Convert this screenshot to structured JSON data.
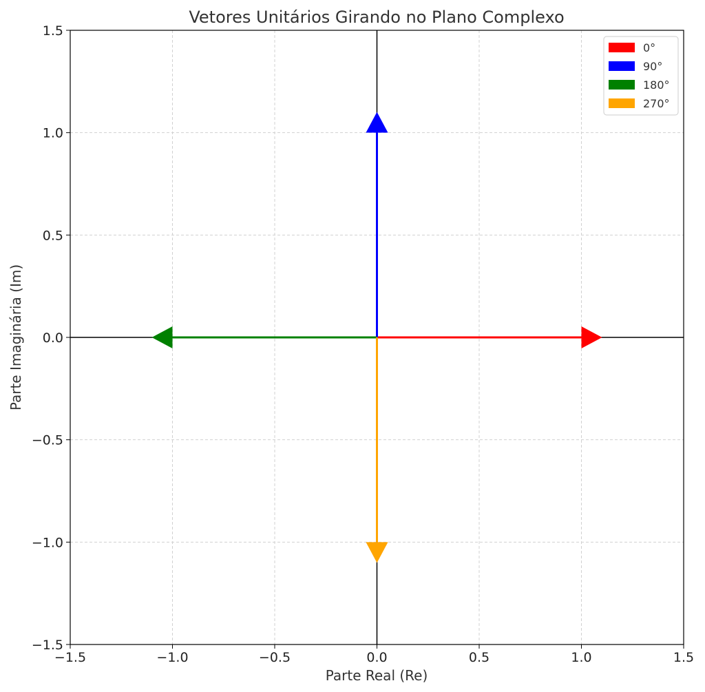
{
  "chart_data": {
    "type": "quiver",
    "title": "Vetores Unitários Girando no Plano Complexo",
    "xlabel": "Parte Real (Re)",
    "ylabel": "Parte Imaginária (Im)",
    "xlim": [
      -1.5,
      1.5
    ],
    "ylim": [
      -1.5,
      1.5
    ],
    "xticks": [
      -1.5,
      -1.0,
      -0.5,
      0.0,
      0.5,
      1.0,
      1.5
    ],
    "yticks": [
      -1.5,
      -1.0,
      -0.5,
      0.0,
      0.5,
      1.0,
      1.5
    ],
    "xtick_labels": [
      "−1.5",
      "−1.0",
      "−0.5",
      "0.0",
      "0.5",
      "1.0",
      "1.5"
    ],
    "ytick_labels": [
      "−1.5",
      "−1.0",
      "−0.5",
      "0.0",
      "0.5",
      "1.0",
      "1.5"
    ],
    "grid": true,
    "legend_position": "top-right",
    "series": [
      {
        "name": "0°",
        "color": "#ff0000",
        "start": [
          0,
          0
        ],
        "end": [
          1,
          0
        ]
      },
      {
        "name": "90°",
        "color": "#0000ff",
        "start": [
          0,
          0
        ],
        "end": [
          0,
          1
        ]
      },
      {
        "name": "180°",
        "color": "#008000",
        "start": [
          0,
          0
        ],
        "end": [
          -1,
          0
        ]
      },
      {
        "name": "270°",
        "color": "#ffa500",
        "start": [
          0,
          0
        ],
        "end": [
          0,
          -1
        ]
      }
    ]
  }
}
